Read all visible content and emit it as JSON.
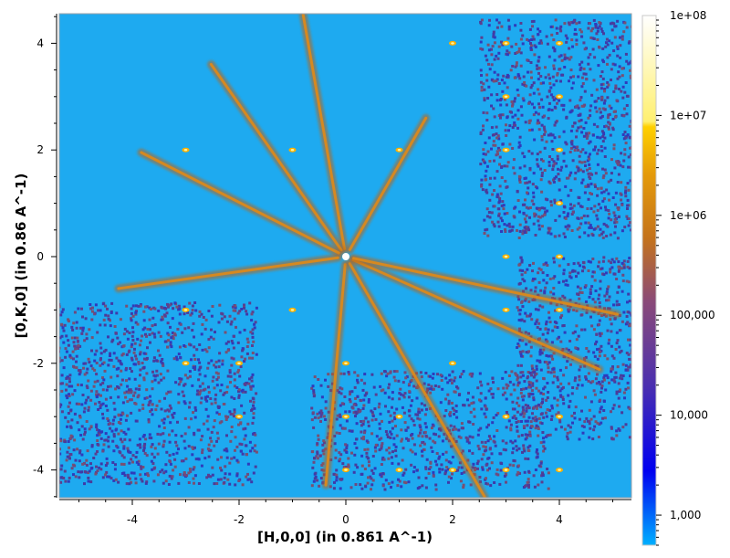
{
  "chart_data": {
    "type": "heatmap",
    "title": "",
    "xlabel": "[H,0,0] (in 0.861 A^-1)",
    "ylabel": "[0,K,0] (in 0.86 A^-1)",
    "xlim": [
      -5.3,
      5.3
    ],
    "ylim": [
      -4.5,
      4.5
    ],
    "x_ticks": [
      -4,
      -2,
      0,
      2,
      4
    ],
    "x_tick_labels": [
      "-4",
      "-2",
      "0",
      "2",
      "4"
    ],
    "y_ticks": [
      4,
      2,
      0,
      -2,
      -4
    ],
    "y_tick_labels": [
      "4",
      "2",
      "0",
      "-2",
      "-4"
    ],
    "grid": false,
    "colorbar": {
      "scale": "log",
      "range": [
        500,
        100000000
      ],
      "ticks": [
        100000000,
        10000000,
        1000000,
        100000,
        10000,
        1000
      ],
      "tick_labels": [
        "1e+08",
        "1e+07",
        "1e+06",
        "100,000",
        "10,000",
        "1,000"
      ],
      "colors": [
        "#00b4ff",
        "#0000ff",
        "#6b3fa0",
        "#c0711a",
        "#ffd200",
        "#ffffff"
      ]
    },
    "background_color": "#1eaaf0",
    "streaks": [
      {
        "angle_deg": 100,
        "length": 4.6
      },
      {
        "angle_deg": 125,
        "length": 4.4
      },
      {
        "angle_deg": 153,
        "length": 4.3
      },
      {
        "angle_deg": 60,
        "length": 3.0
      },
      {
        "angle_deg": 188,
        "length": 4.3
      },
      {
        "angle_deg": 265,
        "length": 4.3
      },
      {
        "angle_deg": 300,
        "length": 5.2
      },
      {
        "angle_deg": 336,
        "length": 5.2
      },
      {
        "angle_deg": 348,
        "length": 5.2
      }
    ],
    "bragg_peaks": [
      [
        -3,
        2
      ],
      [
        -1,
        2
      ],
      [
        1,
        2
      ],
      [
        -3,
        -1
      ],
      [
        -1,
        -1
      ],
      [
        3,
        -1
      ],
      [
        4,
        -1
      ],
      [
        -3,
        -2
      ],
      [
        -2,
        -2
      ],
      [
        0,
        -2
      ],
      [
        2,
        -2
      ],
      [
        -2,
        -3
      ],
      [
        0,
        -3
      ],
      [
        1,
        -3
      ],
      [
        3,
        -3
      ],
      [
        4,
        -3
      ],
      [
        0,
        -4
      ],
      [
        1,
        -4
      ],
      [
        2,
        -4
      ],
      [
        3,
        -4
      ],
      [
        4,
        -4
      ],
      [
        2,
        4
      ],
      [
        3,
        4
      ],
      [
        4,
        4
      ],
      [
        3,
        3
      ],
      [
        4,
        3
      ],
      [
        3,
        2
      ],
      [
        4,
        2
      ],
      [
        4,
        1
      ],
      [
        3,
        0
      ],
      [
        4,
        0
      ]
    ]
  }
}
